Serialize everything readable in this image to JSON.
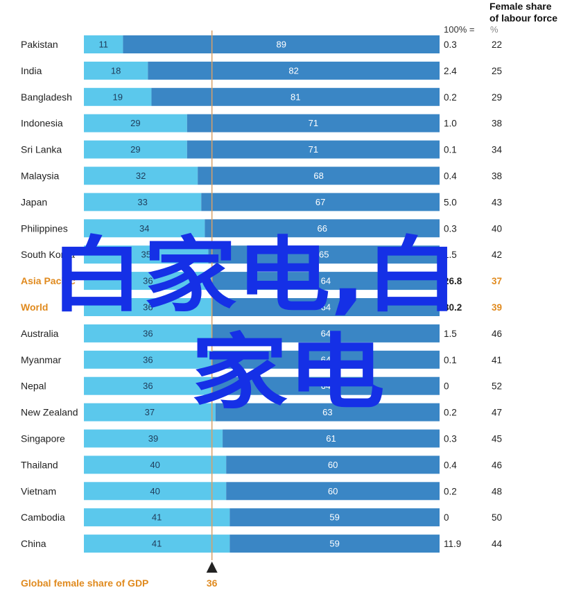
{
  "chart_data": {
    "type": "bar",
    "stacked": true,
    "orientation": "horizontal",
    "categories": [
      "Pakistan",
      "India",
      "Bangladesh",
      "Indonesia",
      "Sri Lanka",
      "Malaysia",
      "Japan",
      "Philippines",
      "South Korea",
      "Asia Pacific",
      "World",
      "Australia",
      "Myanmar",
      "Nepal",
      "New Zealand",
      "Singapore",
      "Thailand",
      "Vietnam",
      "Cambodia",
      "China"
    ],
    "highlighted_categories": [
      "Asia Pacific",
      "World"
    ],
    "series": [
      {
        "values": [
          11,
          18,
          19,
          29,
          29,
          32,
          33,
          34,
          35,
          36,
          36,
          36,
          36,
          36,
          37,
          39,
          40,
          40,
          41,
          41
        ],
        "color": "#5bc8ec"
      },
      {
        "values": [
          89,
          82,
          81,
          71,
          71,
          68,
          67,
          66,
          65,
          64,
          64,
          64,
          64,
          64,
          63,
          61,
          60,
          60,
          59,
          59
        ],
        "color": "#3a86c5"
      }
    ],
    "xlim": [
      0,
      100
    ],
    "reference_line": {
      "value": 36,
      "label": "36",
      "caption": "Global female share of GDP"
    },
    "column_100pct": {
      "header": "100% =",
      "values": [
        "0.3",
        "2.4",
        "0.2",
        "1.0",
        "0.1",
        "0.4",
        "5.0",
        "0.3",
        "1.5",
        "26.8",
        "80.2",
        "1.5",
        "0.1",
        "0",
        "0.2",
        "0.3",
        "0.4",
        "0.2",
        "0",
        "11.9"
      ]
    },
    "column_labour": {
      "header_line1": "Female share",
      "header_line2": "of labour force",
      "header_unit": "%",
      "values": [
        "22",
        "25",
        "29",
        "38",
        "34",
        "38",
        "43",
        "40",
        "42",
        "37",
        "39",
        "46",
        "41",
        "52",
        "47",
        "45",
        "46",
        "48",
        "50",
        "44"
      ]
    },
    "overlay_text": {
      "line1": "白家电,白",
      "line2": "家电"
    },
    "colors": {
      "light_bar": "#5bc8ec",
      "dark_bar": "#3a86c5",
      "highlight": "#e08a1e",
      "reference_line": "#d9a066",
      "watermark": "#1530e6"
    }
  }
}
